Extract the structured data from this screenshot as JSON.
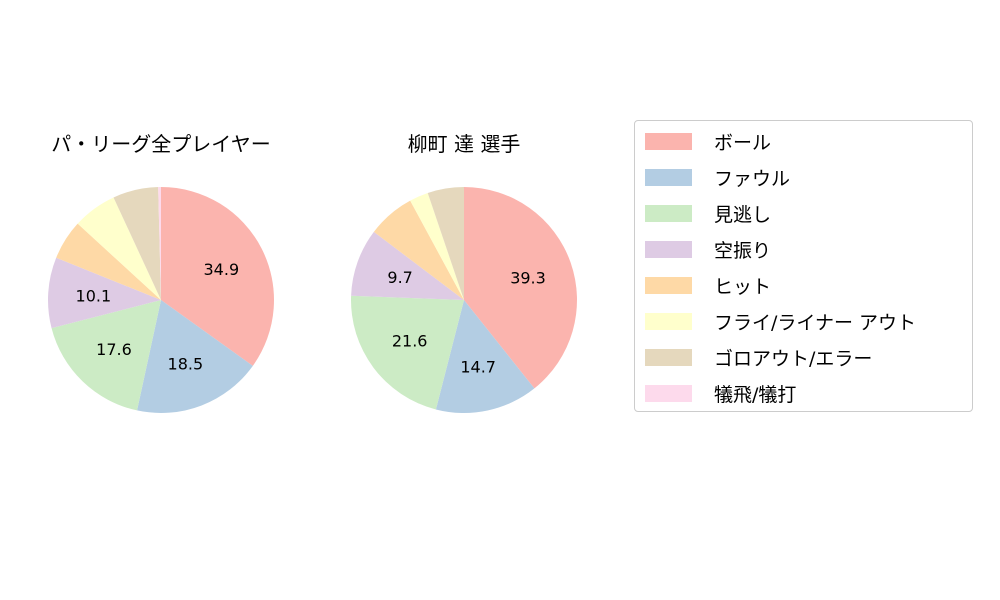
{
  "chart_data": [
    {
      "type": "pie",
      "title": "パ・リーグ全プレイヤー",
      "categories": [
        "ボール",
        "ファウル",
        "見逃し",
        "空振り",
        "ヒット",
        "フライ/ライナー アウト",
        "ゴロアウト/エラー",
        "犠飛/犠打"
      ],
      "values": [
        34.9,
        18.5,
        17.6,
        10.1,
        5.7,
        6.3,
        6.5,
        0.4
      ],
      "labels_shown": [
        "34.9",
        "18.5",
        "17.6",
        "10.1"
      ],
      "start_angle": 90,
      "direction": "clockwise"
    },
    {
      "type": "pie",
      "title": "柳町 達  選手",
      "categories": [
        "ボール",
        "ファウル",
        "見逃し",
        "空振り",
        "ヒット",
        "フライ/ライナー アウト",
        "ゴロアウト/エラー",
        "犠飛/犠打"
      ],
      "values": [
        39.3,
        14.7,
        21.6,
        9.7,
        6.8,
        2.7,
        5.2,
        0.0
      ],
      "labels_shown": [
        "39.3",
        "14.7",
        "21.6",
        "9.7"
      ],
      "start_angle": 90,
      "direction": "clockwise"
    }
  ],
  "colors": [
    "#fbb4ae",
    "#b3cde3",
    "#ccebc5",
    "#decbe4",
    "#fed9a6",
    "#ffffcc",
    "#e5d8bd",
    "#fddaec"
  ],
  "legend": {
    "items": [
      {
        "label": "ボール",
        "color": "#fbb4ae"
      },
      {
        "label": "ファウル",
        "color": "#b3cde3"
      },
      {
        "label": "見逃し",
        "color": "#ccebc5"
      },
      {
        "label": "空振り",
        "color": "#decbe4"
      },
      {
        "label": "ヒット",
        "color": "#fed9a6"
      },
      {
        "label": "フライ/ライナー アウト",
        "color": "#ffffcc"
      },
      {
        "label": "ゴロアウト/エラー",
        "color": "#e5d8bd"
      },
      {
        "label": "犠飛/犠打",
        "color": "#fddaec"
      }
    ]
  },
  "titles": {
    "league": "パ・リーグ全プレイヤー",
    "player": "柳町 達  選手"
  }
}
